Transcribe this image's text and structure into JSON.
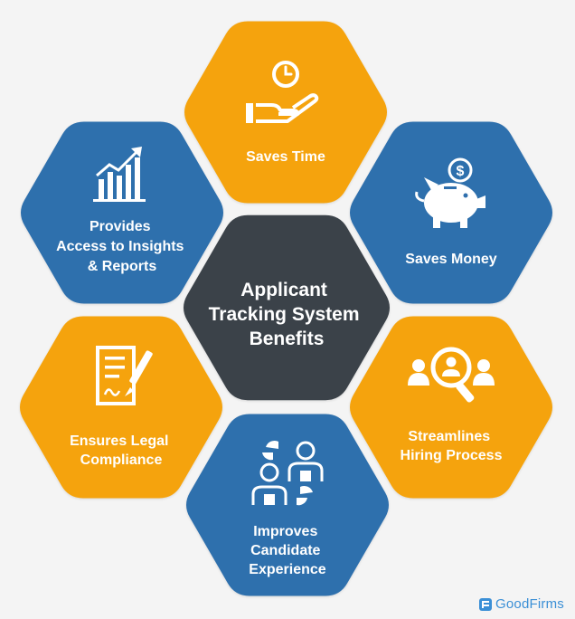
{
  "colors": {
    "orange": "#f5a30a",
    "blue": "#2f6fad",
    "center": "#3b4249",
    "brand": "#3a8fd6"
  },
  "center": {
    "lines": [
      "Applicant",
      "Tracking System",
      "Benefits"
    ]
  },
  "benefits": [
    {
      "id": "saves-time",
      "color": "orange",
      "icon": "clock-hand-icon",
      "lines": [
        "Saves Time"
      ]
    },
    {
      "id": "saves-money",
      "color": "blue",
      "icon": "piggy-bank-icon",
      "lines": [
        "Saves Money"
      ]
    },
    {
      "id": "streamlines-hiring",
      "color": "orange",
      "icon": "search-people-icon",
      "lines": [
        "Streamlines",
        "Hiring Process"
      ]
    },
    {
      "id": "candidate-experience",
      "color": "blue",
      "icon": "user-exchange-icon",
      "lines": [
        "Improves",
        "Candidate",
        "Experience"
      ]
    },
    {
      "id": "legal-compliance",
      "color": "orange",
      "icon": "document-sign-icon",
      "lines": [
        "Ensures Legal",
        "Compliance"
      ]
    },
    {
      "id": "insights-reports",
      "color": "blue",
      "icon": "bar-chart-icon",
      "lines": [
        "Provides",
        "Access to Insights",
        "& Reports"
      ]
    }
  ],
  "brand": {
    "name": "GoodFirms"
  }
}
